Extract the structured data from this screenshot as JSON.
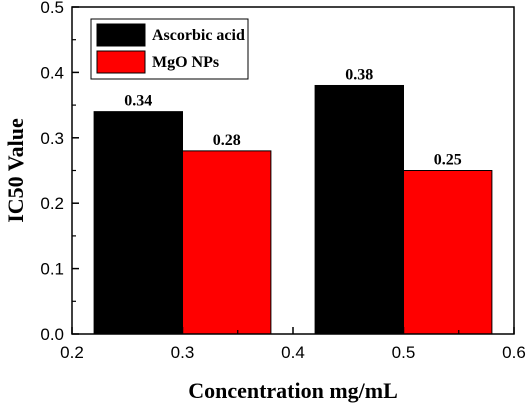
{
  "chart_data": {
    "type": "bar",
    "title": "",
    "xlabel": "Concentration mg/mL",
    "ylabel": "IC50 Value",
    "xlim": [
      0.2,
      0.6
    ],
    "ylim": [
      0.0,
      0.5
    ],
    "xticks": [
      "0.2",
      "0.3",
      "0.4",
      "0.5",
      "0.6"
    ],
    "yticks": [
      "0.0",
      "0.1",
      "0.2",
      "0.3",
      "0.4",
      "0.5"
    ],
    "x": [
      0.3,
      0.5
    ],
    "bar_width": 0.08,
    "grid": false,
    "legend_position": "top-left",
    "series": [
      {
        "name": "Ascorbic acid",
        "color": "#000000",
        "values": [
          0.34,
          0.38
        ],
        "labels": [
          "0.34",
          "0.38"
        ]
      },
      {
        "name": "MgO NPs",
        "color": "#ff0000",
        "values": [
          0.28,
          0.25
        ],
        "labels": [
          "0.28",
          "0.25"
        ]
      }
    ]
  }
}
